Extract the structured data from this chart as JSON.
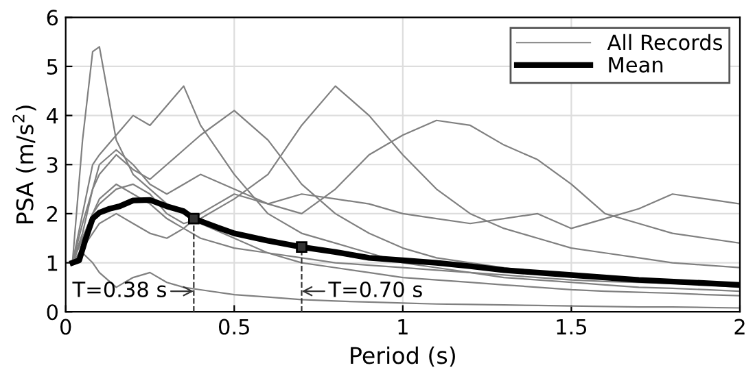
{
  "chart_data": {
    "type": "line",
    "xlabel": "Period (s)",
    "ylabel": "PSA (m/s$^{2}$)",
    "xlim": [
      0,
      2
    ],
    "ylim": [
      0,
      6
    ],
    "xticks": [
      0,
      0.5,
      1,
      1.5,
      2
    ],
    "yticks": [
      0,
      1,
      2,
      3,
      4,
      5,
      6
    ],
    "grid": true,
    "legend": "top right",
    "marker": "none",
    "line_style": "solid",
    "series": [
      {
        "name": "All Records",
        "color": "#808080",
        "x": [
          0.02,
          0.05,
          0.08,
          0.1,
          0.15,
          0.2,
          0.25,
          0.3,
          0.35,
          0.4,
          0.5,
          0.6,
          0.7,
          0.8,
          0.9,
          1.0,
          1.1,
          1.2,
          1.3,
          1.4,
          1.5,
          1.6,
          1.7,
          1.8,
          1.9,
          2.0
        ],
        "values": [
          1.0,
          3.5,
          5.3,
          5.4,
          3.5,
          2.8,
          2.5,
          2.2,
          2.0,
          1.8,
          1.5,
          1.2,
          1.0,
          0.9,
          0.8,
          0.7,
          0.65,
          0.6,
          0.55,
          0.5,
          0.45,
          0.42,
          0.4,
          0.38,
          0.35,
          0.33
        ]
      },
      {
        "color": "#808080",
        "x": [
          0.02,
          0.05,
          0.08,
          0.1,
          0.15,
          0.2,
          0.25,
          0.3,
          0.35,
          0.4,
          0.5,
          0.6,
          0.7,
          0.8,
          0.9,
          1.0,
          1.1,
          1.2,
          1.3,
          1.4,
          1.5,
          1.6,
          1.7,
          1.8,
          1.9,
          2.0
        ],
        "values": [
          1.0,
          1.5,
          2.0,
          2.2,
          2.5,
          2.6,
          2.4,
          2.0,
          1.8,
          1.9,
          2.3,
          2.8,
          3.8,
          4.6,
          4.0,
          3.2,
          2.5,
          2.0,
          1.7,
          1.5,
          1.3,
          1.2,
          1.1,
          1.0,
          0.95,
          0.9
        ]
      },
      {
        "color": "#808080",
        "x": [
          0.02,
          0.05,
          0.08,
          0.1,
          0.15,
          0.2,
          0.25,
          0.3,
          0.35,
          0.4,
          0.5,
          0.6,
          0.7,
          0.8,
          0.9,
          1.0,
          1.1,
          1.2,
          1.3,
          1.4,
          1.5,
          1.6,
          1.7,
          1.8,
          1.9,
          2.0
        ],
        "values": [
          1.0,
          1.3,
          1.6,
          1.8,
          2.0,
          1.8,
          1.6,
          1.5,
          1.7,
          2.0,
          2.4,
          2.2,
          2.0,
          2.5,
          3.2,
          3.6,
          3.9,
          3.8,
          3.4,
          3.1,
          2.6,
          2.0,
          1.8,
          1.6,
          1.5,
          1.4
        ]
      },
      {
        "color": "#808080",
        "x": [
          0.02,
          0.05,
          0.08,
          0.1,
          0.15,
          0.2,
          0.25,
          0.3,
          0.35,
          0.4,
          0.5,
          0.6,
          0.7,
          0.8,
          0.9,
          1.0,
          1.1,
          1.2,
          1.3,
          1.4,
          1.5,
          1.6,
          1.7,
          1.8,
          1.9,
          2.0
        ],
        "values": [
          1.0,
          1.6,
          2.5,
          3.0,
          3.3,
          3.0,
          2.6,
          2.4,
          2.6,
          2.8,
          2.5,
          2.2,
          2.4,
          2.3,
          2.2,
          2.0,
          1.9,
          1.8,
          1.9,
          2.0,
          1.7,
          1.9,
          2.1,
          2.4,
          2.3,
          2.2
        ]
      },
      {
        "color": "#808080",
        "x": [
          0.02,
          0.05,
          0.08,
          0.1,
          0.15,
          0.2,
          0.25,
          0.3,
          0.35,
          0.4,
          0.5,
          0.6,
          0.7,
          0.8,
          0.9,
          1.0,
          1.1,
          1.2,
          1.3,
          1.4,
          1.5,
          1.6,
          1.7,
          1.8,
          1.9,
          2.0
        ],
        "values": [
          1.0,
          1.2,
          1.0,
          0.8,
          0.5,
          0.7,
          0.8,
          0.6,
          0.5,
          0.45,
          0.35,
          0.3,
          0.25,
          0.22,
          0.2,
          0.18,
          0.16,
          0.15,
          0.14,
          0.13,
          0.12,
          0.11,
          0.1,
          0.1,
          0.09,
          0.08
        ]
      },
      {
        "color": "#808080",
        "x": [
          0.02,
          0.05,
          0.08,
          0.1,
          0.15,
          0.2,
          0.25,
          0.3,
          0.35,
          0.4,
          0.5,
          0.6,
          0.7,
          0.8,
          0.9,
          1.0,
          1.1,
          1.2,
          1.3,
          1.4,
          1.5,
          1.6,
          1.7,
          1.8,
          1.9,
          2.0
        ],
        "values": [
          1.0,
          2.0,
          3.0,
          3.2,
          3.6,
          4.0,
          3.8,
          4.2,
          4.6,
          3.8,
          2.8,
          2.0,
          1.6,
          1.4,
          1.2,
          1.0,
          0.9,
          0.8,
          0.7,
          0.65,
          0.6,
          0.55,
          0.5,
          0.48,
          0.45,
          0.42
        ]
      },
      {
        "color": "#808080",
        "x": [
          0.02,
          0.05,
          0.08,
          0.1,
          0.15,
          0.2,
          0.25,
          0.3,
          0.35,
          0.4,
          0.5,
          0.6,
          0.7,
          0.8,
          0.9,
          1.0,
          1.1,
          1.2,
          1.3,
          1.4,
          1.5,
          1.6,
          1.7,
          1.8,
          1.9,
          2.0
        ],
        "values": [
          1.0,
          1.8,
          2.5,
          2.8,
          3.2,
          2.9,
          2.7,
          3.0,
          3.3,
          3.6,
          4.1,
          3.5,
          2.6,
          2.0,
          1.6,
          1.3,
          1.1,
          1.0,
          0.9,
          0.8,
          0.75,
          0.7,
          0.65,
          0.6,
          0.58,
          0.55
        ]
      },
      {
        "color": "#808080",
        "x": [
          0.02,
          0.05,
          0.08,
          0.1,
          0.15,
          0.2,
          0.25,
          0.3,
          0.35,
          0.4,
          0.5,
          0.6,
          0.7,
          0.8,
          0.9,
          1.0,
          1.1,
          1.2,
          1.3,
          1.4,
          1.5,
          1.6,
          1.7,
          1.8,
          1.9,
          2.0
        ],
        "values": [
          1.0,
          1.5,
          2.0,
          2.3,
          2.6,
          2.4,
          2.2,
          1.9,
          1.7,
          1.5,
          1.3,
          1.2,
          1.1,
          1.0,
          0.95,
          0.9,
          0.85,
          0.8,
          0.75,
          0.7,
          0.65,
          0.62,
          0.6,
          0.58,
          0.55,
          0.5
        ]
      },
      {
        "name": "Mean",
        "color": "#000000",
        "x": [
          0.02,
          0.04,
          0.06,
          0.08,
          0.1,
          0.13,
          0.16,
          0.2,
          0.25,
          0.3,
          0.35,
          0.38,
          0.45,
          0.5,
          0.6,
          0.7,
          0.8,
          0.9,
          1.0,
          1.1,
          1.2,
          1.3,
          1.5,
          1.7,
          2.0
        ],
        "values": [
          1.0,
          1.05,
          1.5,
          1.9,
          2.02,
          2.1,
          2.15,
          2.27,
          2.28,
          2.15,
          2.05,
          1.9,
          1.72,
          1.6,
          1.45,
          1.32,
          1.22,
          1.1,
          1.05,
          1.0,
          0.93,
          0.85,
          0.75,
          0.65,
          0.55
        ]
      }
    ],
    "ref_lines": [
      {
        "axis": "x",
        "value": 0.38,
        "label": "T=0.38 s",
        "line_style": "dashed",
        "color": "#333333"
      },
      {
        "axis": "x",
        "value": 0.7,
        "label": "T=0.70 s",
        "line_style": "dashed",
        "color": "#333333"
      }
    ]
  }
}
